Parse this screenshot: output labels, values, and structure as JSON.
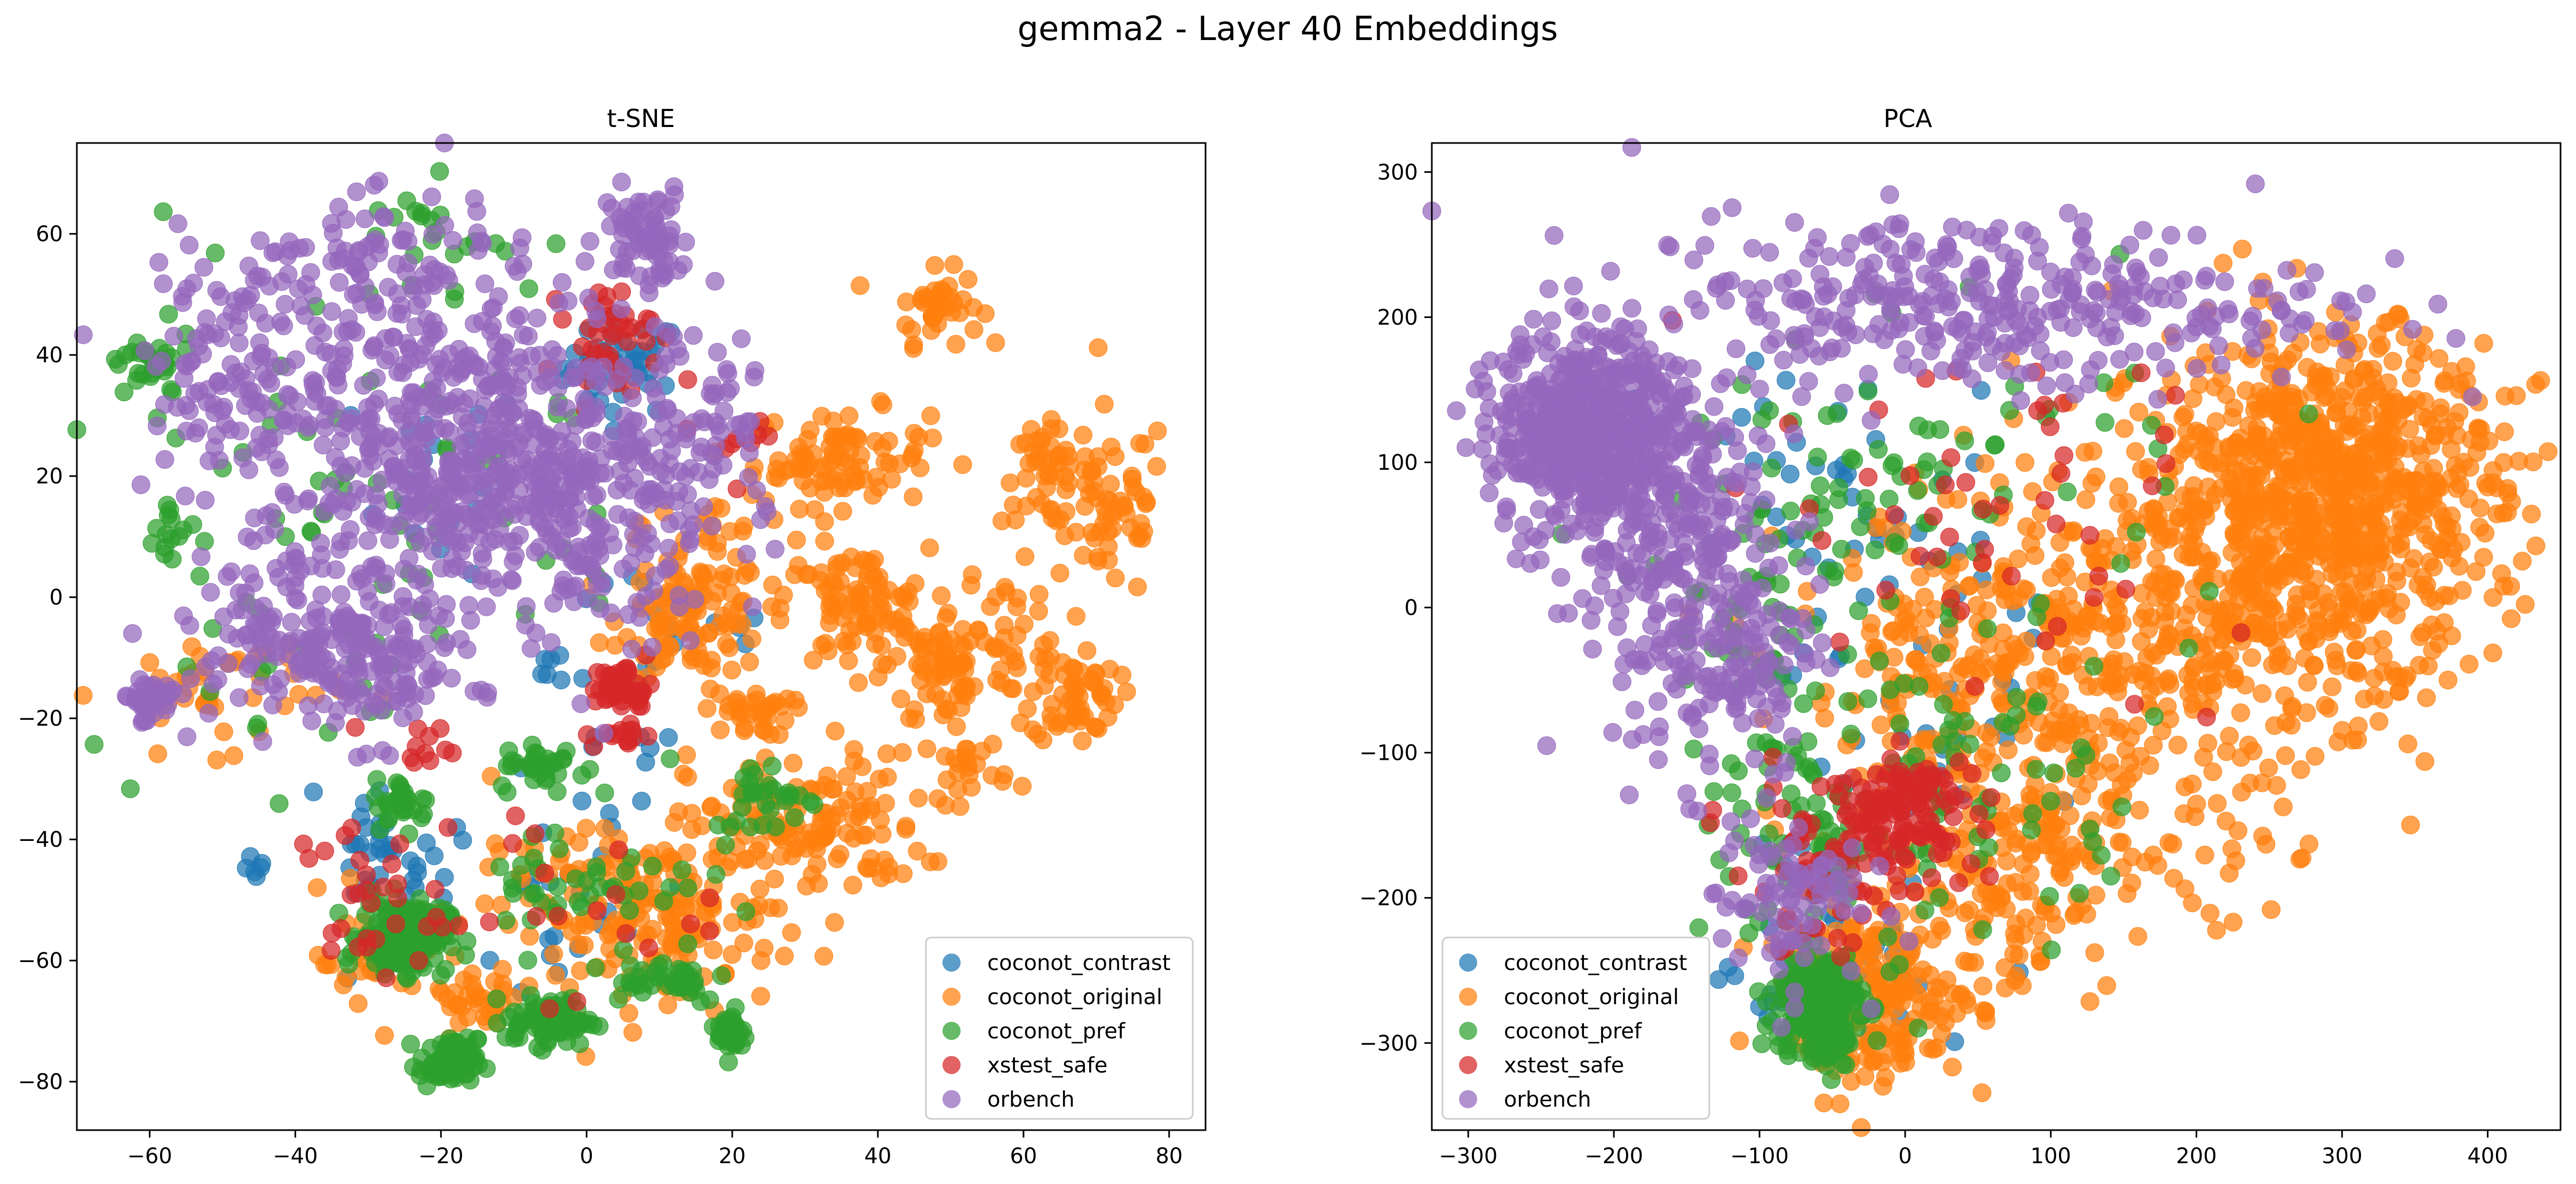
{
  "figure": {
    "suptitle": "gemma2 - Layer 40 Embeddings"
  },
  "legend": {
    "placement": "lower right / lower left",
    "entries": [
      {
        "label": "coconot_contrast",
        "color": "#1f77b4"
      },
      {
        "label": "coconot_original",
        "color": "#ff7f0e"
      },
      {
        "label": "coconot_pref",
        "color": "#2ca02c"
      },
      {
        "label": "xstest_safe",
        "color": "#d62728"
      },
      {
        "label": "orbench",
        "color": "#9467bd"
      }
    ]
  },
  "chart_data": [
    {
      "type": "scatter",
      "title": "t-SNE",
      "xlabel": "",
      "ylabel": "",
      "xlim": [
        -70,
        85
      ],
      "ylim": [
        -88,
        75
      ],
      "xticks": [
        -60,
        -40,
        -20,
        0,
        20,
        40,
        60,
        80
      ],
      "yticks": [
        -80,
        -60,
        -40,
        -20,
        0,
        20,
        40,
        60
      ],
      "xtick_labels": [
        "−60",
        "−40",
        "−20",
        "0",
        "20",
        "40",
        "60",
        "80"
      ],
      "ytick_labels": [
        "−80",
        "−60",
        "−40",
        "−20",
        "0",
        "20",
        "40",
        "60"
      ],
      "grid": false,
      "legend_position": "lower right",
      "series": [
        {
          "name": "coconot_contrast",
          "color": "#1f77b4",
          "clusters": [
            {
              "x": 5,
              "y": 38,
              "sx": 4,
              "sy": 4,
              "n": 45
            },
            {
              "x": -20,
              "y": 20,
              "sx": 6,
              "sy": 8,
              "n": 20
            },
            {
              "x": -28,
              "y": -44,
              "sx": 4,
              "sy": 4,
              "n": 30
            },
            {
              "x": -45,
              "y": -45,
              "sx": 1,
              "sy": 1,
              "n": 6
            },
            {
              "x": -10,
              "y": -45,
              "sx": 12,
              "sy": 12,
              "n": 35
            },
            {
              "x": 10,
              "y": -10,
              "sx": 10,
              "sy": 12,
              "n": 20
            },
            {
              "x": -4,
              "y": -11,
              "sx": 1,
              "sy": 2,
              "n": 6
            }
          ]
        },
        {
          "name": "coconot_original",
          "color": "#ff7f0e",
          "clusters": [
            {
              "x": 48,
              "y": 48,
              "sx": 3,
              "sy": 3,
              "n": 40
            },
            {
              "x": 35,
              "y": 23,
              "sx": 6,
              "sy": 4,
              "n": 90
            },
            {
              "x": 63,
              "y": 20,
              "sx": 3,
              "sy": 4,
              "n": 45
            },
            {
              "x": 72,
              "y": 15,
              "sx": 4,
              "sy": 8,
              "n": 60
            },
            {
              "x": 15,
              "y": -3,
              "sx": 5,
              "sy": 5,
              "n": 110
            },
            {
              "x": 37,
              "y": -2,
              "sx": 5,
              "sy": 5,
              "n": 100
            },
            {
              "x": 50,
              "y": -12,
              "sx": 4,
              "sy": 5,
              "n": 70
            },
            {
              "x": 67,
              "y": -16,
              "sx": 3,
              "sy": 4,
              "n": 60
            },
            {
              "x": 57,
              "y": -5,
              "sx": 5,
              "sy": 5,
              "n": 30
            },
            {
              "x": 22,
              "y": -19,
              "sx": 3,
              "sy": 2,
              "n": 35
            },
            {
              "x": 30,
              "y": -38,
              "sx": 8,
              "sy": 6,
              "n": 140
            },
            {
              "x": 10,
              "y": -53,
              "sx": 8,
              "sy": 6,
              "n": 140
            },
            {
              "x": 52,
              "y": -28,
              "sx": 3,
              "sy": 3,
              "n": 25
            },
            {
              "x": -15,
              "y": -67,
              "sx": 3,
              "sy": 2,
              "n": 30
            },
            {
              "x": -50,
              "y": -15,
              "sx": 8,
              "sy": 5,
              "n": 45
            },
            {
              "x": 0,
              "y": -52,
              "sx": 12,
              "sy": 10,
              "n": 60
            },
            {
              "x": -30,
              "y": -60,
              "sx": 6,
              "sy": 5,
              "n": 25
            },
            {
              "x": 20,
              "y": 12,
              "sx": 5,
              "sy": 4,
              "n": 20
            }
          ]
        },
        {
          "name": "coconot_pref",
          "color": "#2ca02c",
          "clusters": [
            {
              "x": -60,
              "y": 38,
              "sx": 3,
              "sy": 3,
              "n": 30
            },
            {
              "x": -22,
              "y": 60,
              "sx": 6,
              "sy": 4,
              "n": 20
            },
            {
              "x": -57,
              "y": 10,
              "sx": 2,
              "sy": 4,
              "n": 15
            },
            {
              "x": -25,
              "y": -56,
              "sx": 3,
              "sy": 3,
              "n": 170
            },
            {
              "x": -19,
              "y": -77,
              "sx": 2,
              "sy": 2,
              "n": 70
            },
            {
              "x": -5,
              "y": -70,
              "sx": 3,
              "sy": 2,
              "n": 80
            },
            {
              "x": 20,
              "y": -72,
              "sx": 1,
              "sy": 2,
              "n": 30
            },
            {
              "x": 10,
              "y": -63,
              "sx": 5,
              "sy": 2,
              "n": 40
            },
            {
              "x": -25,
              "y": -34,
              "sx": 2,
              "sy": 2,
              "n": 30
            },
            {
              "x": -6,
              "y": -28,
              "sx": 3,
              "sy": 2,
              "n": 30
            },
            {
              "x": 25,
              "y": -33,
              "sx": 4,
              "sy": 3,
              "n": 30
            },
            {
              "x": 0,
              "y": -47,
              "sx": 8,
              "sy": 6,
              "n": 45
            },
            {
              "x": -30,
              "y": 20,
              "sx": 20,
              "sy": 20,
              "n": 60
            },
            {
              "x": -40,
              "y": -3,
              "sx": 15,
              "sy": 12,
              "n": 20
            }
          ]
        },
        {
          "name": "xstest_safe",
          "color": "#d62728",
          "clusters": [
            {
              "x": 3,
              "y": 43,
              "sx": 3,
              "sy": 4,
              "n": 40
            },
            {
              "x": 5,
              "y": -15,
              "sx": 2,
              "sy": 2,
              "n": 45
            },
            {
              "x": 5,
              "y": -23,
              "sx": 2,
              "sy": 1,
              "n": 15
            },
            {
              "x": -30,
              "y": -50,
              "sx": 5,
              "sy": 7,
              "n": 30
            },
            {
              "x": -22,
              "y": -25,
              "sx": 2,
              "sy": 2,
              "n": 10
            },
            {
              "x": -8,
              "y": -50,
              "sx": 12,
              "sy": 8,
              "n": 20
            },
            {
              "x": 20,
              "y": 28,
              "sx": 4,
              "sy": 4,
              "n": 10
            }
          ]
        },
        {
          "name": "orbench",
          "color": "#9467bd",
          "clusters": [
            {
              "x": -25,
              "y": 30,
              "sx": 15,
              "sy": 15,
              "n": 450
            },
            {
              "x": -5,
              "y": 15,
              "sx": 12,
              "sy": 12,
              "n": 350
            },
            {
              "x": 8,
              "y": 60,
              "sx": 3,
              "sy": 4,
              "n": 70
            },
            {
              "x": -40,
              "y": -5,
              "sx": 8,
              "sy": 6,
              "n": 120
            },
            {
              "x": -30,
              "y": -12,
              "sx": 6,
              "sy": 6,
              "n": 100
            },
            {
              "x": -60,
              "y": -17,
              "sx": 2,
              "sy": 2,
              "n": 40
            },
            {
              "x": -50,
              "y": 40,
              "sx": 5,
              "sy": 8,
              "n": 60
            },
            {
              "x": 15,
              "y": 30,
              "sx": 6,
              "sy": 10,
              "n": 60
            },
            {
              "x": -30,
              "y": 55,
              "sx": 8,
              "sy": 5,
              "n": 60
            }
          ]
        }
      ]
    },
    {
      "type": "scatter",
      "title": "PCA",
      "xlabel": "",
      "ylabel": "",
      "xlim": [
        -325,
        450
      ],
      "ylim": [
        -360,
        320
      ],
      "xticks": [
        -300,
        -200,
        -100,
        0,
        100,
        200,
        300,
        400
      ],
      "yticks": [
        -300,
        -200,
        -100,
        0,
        100,
        200,
        300
      ],
      "xtick_labels": [
        "−300",
        "−200",
        "−100",
        "0",
        "100",
        "200",
        "300",
        "400"
      ],
      "ytick_labels": [
        "−300",
        "−200",
        "−100",
        "0",
        "100",
        "200",
        "300"
      ],
      "grid": false,
      "legend_position": "lower left",
      "series": [
        {
          "name": "coconot_contrast",
          "color": "#1f77b4",
          "clusters": [
            {
              "x": -50,
              "y": 60,
              "sx": 60,
              "sy": 70,
              "n": 50
            },
            {
              "x": 0,
              "y": -130,
              "sx": 60,
              "sy": 70,
              "n": 40
            },
            {
              "x": -60,
              "y": -260,
              "sx": 30,
              "sy": 30,
              "n": 30
            }
          ]
        },
        {
          "name": "coconot_original",
          "color": "#ff7f0e",
          "clusters": [
            {
              "x": 300,
              "y": 80,
              "sx": 55,
              "sy": 55,
              "n": 700
            },
            {
              "x": 220,
              "y": 20,
              "sx": 70,
              "sy": 70,
              "n": 400
            },
            {
              "x": 60,
              "y": -50,
              "sx": 70,
              "sy": 60,
              "n": 300
            },
            {
              "x": 120,
              "y": -150,
              "sx": 70,
              "sy": 40,
              "n": 150
            },
            {
              "x": -20,
              "y": -270,
              "sx": 30,
              "sy": 30,
              "n": 200
            },
            {
              "x": 50,
              "y": -220,
              "sx": 40,
              "sy": 40,
              "n": 70
            }
          ]
        },
        {
          "name": "coconot_pref",
          "color": "#2ca02c",
          "clusters": [
            {
              "x": -60,
              "y": -275,
              "sx": 15,
              "sy": 20,
              "n": 220
            },
            {
              "x": -50,
              "y": -150,
              "sx": 40,
              "sy": 50,
              "n": 100
            },
            {
              "x": 0,
              "y": 80,
              "sx": 100,
              "sy": 60,
              "n": 90
            },
            {
              "x": 50,
              "y": -120,
              "sx": 60,
              "sy": 50,
              "n": 50
            },
            {
              "x": -100,
              "y": 0,
              "sx": 30,
              "sy": 60,
              "n": 40
            }
          ]
        },
        {
          "name": "xstest_safe",
          "color": "#d62728",
          "clusters": [
            {
              "x": 0,
              "y": -140,
              "sx": 25,
              "sy": 20,
              "n": 120
            },
            {
              "x": -60,
              "y": -180,
              "sx": 30,
              "sy": 30,
              "n": 60
            },
            {
              "x": 50,
              "y": 60,
              "sx": 100,
              "sy": 60,
              "n": 50
            }
          ]
        },
        {
          "name": "orbench",
          "color": "#9467bd",
          "clusters": [
            {
              "x": -220,
              "y": 130,
              "sx": 30,
              "sy": 30,
              "n": 450
            },
            {
              "x": -180,
              "y": 70,
              "sx": 40,
              "sy": 40,
              "n": 250
            },
            {
              "x": -130,
              "y": -20,
              "sx": 35,
              "sy": 50,
              "n": 200
            },
            {
              "x": 50,
              "y": 210,
              "sx": 120,
              "sy": 30,
              "n": 350
            },
            {
              "x": -80,
              "y": -200,
              "sx": 25,
              "sy": 30,
              "n": 80
            }
          ]
        }
      ]
    }
  ]
}
